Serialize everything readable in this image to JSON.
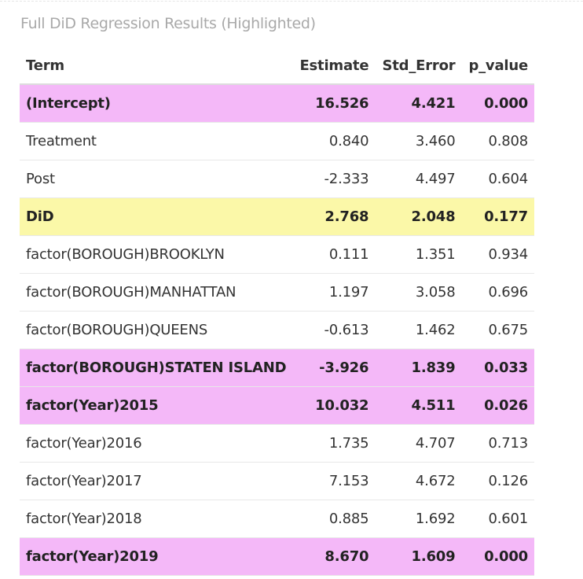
{
  "caption": "Full DiD Regression Results (Highlighted)",
  "columns": {
    "term": "Term",
    "estimate": "Estimate",
    "std_error": "Std_Error",
    "p_value": "p_value"
  },
  "colors": {
    "significant_highlight": "#f4b8f8",
    "did_highlight": "#fbf8a8"
  },
  "rows": [
    {
      "term": "(Intercept)",
      "estimate": "16.526",
      "std_error": "4.421",
      "p_value": "0.000",
      "highlight": "pink"
    },
    {
      "term": "Treatment",
      "estimate": "0.840",
      "std_error": "3.460",
      "p_value": "0.808",
      "highlight": "none"
    },
    {
      "term": "Post",
      "estimate": "-2.333",
      "std_error": "4.497",
      "p_value": "0.604",
      "highlight": "none"
    },
    {
      "term": "DiD",
      "estimate": "2.768",
      "std_error": "2.048",
      "p_value": "0.177",
      "highlight": "yellow"
    },
    {
      "term": "factor(BOROUGH)BROOKLYN",
      "estimate": "0.111",
      "std_error": "1.351",
      "p_value": "0.934",
      "highlight": "none"
    },
    {
      "term": "factor(BOROUGH)MANHATTAN",
      "estimate": "1.197",
      "std_error": "3.058",
      "p_value": "0.696",
      "highlight": "none"
    },
    {
      "term": "factor(BOROUGH)QUEENS",
      "estimate": "-0.613",
      "std_error": "1.462",
      "p_value": "0.675",
      "highlight": "none"
    },
    {
      "term": "factor(BOROUGH)STATEN ISLAND",
      "estimate": "-3.926",
      "std_error": "1.839",
      "p_value": "0.033",
      "highlight": "pink"
    },
    {
      "term": "factor(Year)2015",
      "estimate": "10.032",
      "std_error": "4.511",
      "p_value": "0.026",
      "highlight": "pink"
    },
    {
      "term": "factor(Year)2016",
      "estimate": "1.735",
      "std_error": "4.707",
      "p_value": "0.713",
      "highlight": "none"
    },
    {
      "term": "factor(Year)2017",
      "estimate": "7.153",
      "std_error": "4.672",
      "p_value": "0.126",
      "highlight": "none"
    },
    {
      "term": "factor(Year)2018",
      "estimate": "0.885",
      "std_error": "1.692",
      "p_value": "0.601",
      "highlight": "none"
    },
    {
      "term": "factor(Year)2019",
      "estimate": "8.670",
      "std_error": "1.609",
      "p_value": "0.000",
      "highlight": "pink"
    }
  ]
}
